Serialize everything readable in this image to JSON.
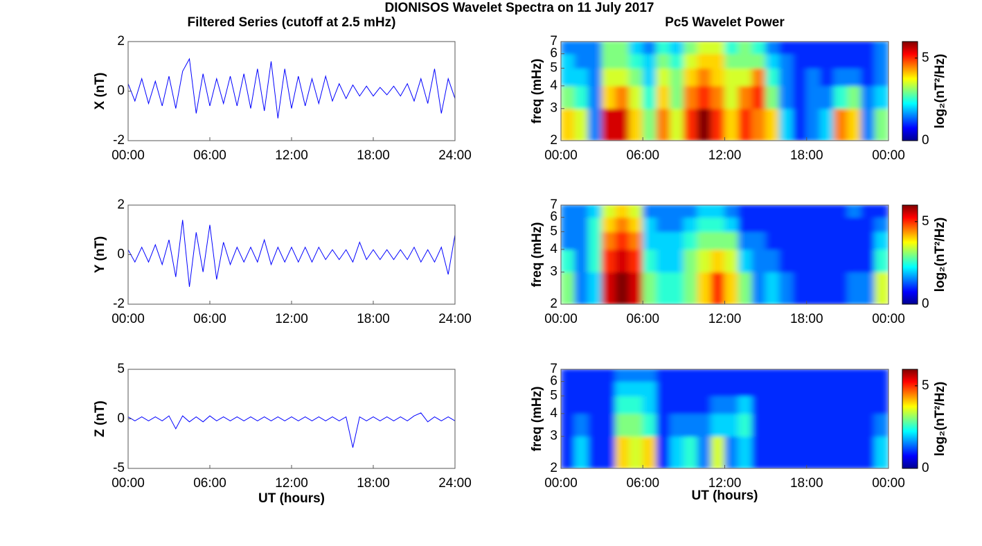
{
  "title": "DIONISOS Wavelet Spectra on 11 July 2017",
  "chart_data": [
    {
      "type": "line",
      "title": "Filtered Series (cutoff at 2.5 mHz)",
      "ylabel": "X (nT)",
      "color": "#0000ff",
      "x": [
        0,
        0.5,
        1,
        1.5,
        2,
        2.5,
        3,
        3.5,
        4,
        4.5,
        5,
        5.5,
        6,
        6.5,
        7,
        7.5,
        8,
        8.5,
        9,
        9.5,
        10,
        10.5,
        11,
        11.5,
        12,
        12.5,
        13,
        13.5,
        14,
        14.5,
        15,
        15.5,
        16,
        16.5,
        17,
        17.5,
        18,
        18.5,
        19,
        19.5,
        20,
        20.5,
        21,
        21.5,
        22,
        22.5,
        23,
        23.5,
        24
      ],
      "values": [
        0.3,
        -0.4,
        0.5,
        -0.5,
        0.4,
        -0.6,
        0.6,
        -0.7,
        0.8,
        1.3,
        -0.9,
        0.7,
        -0.6,
        0.5,
        -0.5,
        0.6,
        -0.6,
        0.7,
        -0.7,
        0.9,
        -0.8,
        1.2,
        -1.1,
        0.9,
        -0.7,
        0.6,
        -0.6,
        0.5,
        -0.5,
        0.6,
        -0.4,
        0.3,
        -0.3,
        0.25,
        -0.2,
        0.2,
        -0.2,
        0.15,
        -0.15,
        0.2,
        -0.2,
        0.3,
        -0.4,
        0.5,
        -0.5,
        0.9,
        -0.9,
        0.5,
        -0.3
      ],
      "xlim": [
        0,
        24
      ],
      "xticks": [
        {
          "value": 0,
          "label": "00:00"
        },
        {
          "value": 6,
          "label": "06:00"
        },
        {
          "value": 12,
          "label": "12:00"
        },
        {
          "value": 18,
          "label": "18:00"
        },
        {
          "value": 24,
          "label": "24:00"
        }
      ],
      "ylim": [
        -2,
        2
      ],
      "yticks": [
        -2,
        0,
        2
      ]
    },
    {
      "type": "heatmap",
      "title": "Pc5 Wavelet Power",
      "ylabel": "freq (mHz)",
      "log_scale": true,
      "xlim": [
        0,
        24
      ],
      "xticks": [
        {
          "value": 0,
          "label": "00:00"
        },
        {
          "value": 6,
          "label": "06:00"
        },
        {
          "value": 12,
          "label": "12:00"
        },
        {
          "value": 18,
          "label": "18:00"
        },
        {
          "value": 24,
          "label": "00:00"
        }
      ],
      "ylim": [
        2,
        7
      ],
      "yticks": [
        2,
        3,
        4,
        5,
        6,
        7
      ],
      "freq_bins": [
        2,
        3,
        4,
        5,
        6,
        7
      ],
      "z": [
        [
          4,
          3.5,
          1.5,
          5.5,
          5.5,
          4,
          3,
          4.5,
          3.5,
          5,
          6,
          5,
          4,
          5,
          4.5,
          4,
          2,
          1,
          1.5,
          2,
          4.5,
          4,
          1.5,
          3
        ],
        [
          3,
          2.5,
          1.5,
          4,
          4.5,
          3.5,
          2.5,
          4,
          3,
          4.5,
          5,
          4.5,
          3.5,
          4.5,
          5,
          3,
          1.5,
          1,
          1.5,
          1.5,
          2.5,
          3,
          1.5,
          2
        ],
        [
          2,
          2,
          1.5,
          3.5,
          3.5,
          3,
          2,
          3.5,
          3,
          4,
          4.5,
          4,
          3.5,
          3.5,
          4.5,
          2.5,
          1.5,
          1,
          1.5,
          1,
          1.5,
          1.5,
          1,
          1.5
        ],
        [
          2,
          1.5,
          1.5,
          3,
          3,
          2.5,
          2,
          3,
          2.5,
          3.5,
          4,
          4,
          3,
          3,
          3,
          2,
          1.5,
          1,
          1,
          1,
          1,
          1,
          1,
          1.5
        ],
        [
          1.5,
          1.5,
          1.5,
          3,
          3,
          2,
          1.5,
          2.5,
          2,
          3,
          3.5,
          3.5,
          2.5,
          3,
          2.5,
          1.5,
          1,
          1,
          1,
          1,
          1,
          1,
          1,
          1.5
        ]
      ],
      "clim": [
        0,
        6
      ],
      "cticks": [
        0,
        5
      ],
      "clabel": "log₂(nT²/Hz)"
    },
    {
      "type": "line",
      "ylabel": "Y (nT)",
      "color": "#0000ff",
      "x": [
        0,
        0.5,
        1,
        1.5,
        2,
        2.5,
        3,
        3.5,
        4,
        4.5,
        5,
        5.5,
        6,
        6.5,
        7,
        7.5,
        8,
        8.5,
        9,
        9.5,
        10,
        10.5,
        11,
        11.5,
        12,
        12.5,
        13,
        13.5,
        14,
        14.5,
        15,
        15.5,
        16,
        16.5,
        17,
        17.5,
        18,
        18.5,
        19,
        19.5,
        20,
        20.5,
        21,
        21.5,
        22,
        22.5,
        23,
        23.5,
        24
      ],
      "values": [
        0.2,
        -0.3,
        0.3,
        -0.3,
        0.4,
        -0.4,
        0.6,
        -0.9,
        1.4,
        -1.3,
        0.9,
        -0.7,
        1.2,
        -1.0,
        0.5,
        -0.4,
        0.3,
        -0.3,
        0.3,
        -0.3,
        0.6,
        -0.4,
        0.3,
        -0.3,
        0.3,
        -0.3,
        0.3,
        -0.3,
        0.3,
        -0.2,
        0.2,
        -0.2,
        0.2,
        -0.3,
        0.5,
        -0.2,
        0.2,
        -0.2,
        0.2,
        -0.2,
        0.2,
        -0.2,
        0.3,
        -0.3,
        0.2,
        -0.3,
        0.3,
        -0.8,
        0.8
      ],
      "xlim": [
        0,
        24
      ],
      "xticks": [
        {
          "value": 0,
          "label": "00:00"
        },
        {
          "value": 6,
          "label": "06:00"
        },
        {
          "value": 12,
          "label": "12:00"
        },
        {
          "value": 18,
          "label": "18:00"
        },
        {
          "value": 24,
          "label": "24:00"
        }
      ],
      "ylim": [
        -2,
        2
      ],
      "yticks": [
        -2,
        0,
        2
      ]
    },
    {
      "type": "heatmap",
      "ylabel": "freq (mHz)",
      "log_scale": true,
      "xlim": [
        0,
        24
      ],
      "xticks": [
        {
          "value": 0,
          "label": "00:00"
        },
        {
          "value": 6,
          "label": "06:00"
        },
        {
          "value": 12,
          "label": "12:00"
        },
        {
          "value": 18,
          "label": "18:00"
        },
        {
          "value": 24,
          "label": "00:00"
        }
      ],
      "ylim": [
        2,
        7
      ],
      "yticks": [
        2,
        3,
        4,
        5,
        6,
        7
      ],
      "freq_bins": [
        2,
        3,
        4,
        5,
        6,
        7
      ],
      "z": [
        [
          3,
          1.5,
          2,
          5.5,
          6,
          5.5,
          3,
          2.5,
          2.5,
          3,
          4,
          5,
          4,
          3,
          1.5,
          2,
          1.5,
          1,
          1,
          1,
          1,
          1.5,
          1.5,
          3.5
        ],
        [
          2.5,
          1.5,
          2.5,
          5,
          5.5,
          5,
          2.5,
          2,
          2,
          3,
          3.5,
          4,
          3.5,
          2,
          1.5,
          1.5,
          1,
          1,
          1,
          1,
          1,
          1,
          1,
          2.5
        ],
        [
          1.5,
          1.5,
          2.5,
          4.5,
          5,
          4.5,
          2,
          2,
          2,
          2.5,
          3,
          3,
          3,
          1.5,
          1.5,
          1,
          1,
          1,
          1,
          1,
          1,
          1,
          1,
          2
        ],
        [
          1.5,
          1.5,
          2.5,
          4,
          4.5,
          4,
          2,
          1.5,
          1.5,
          2,
          2.5,
          2.5,
          2,
          1,
          1,
          1,
          1,
          1,
          1,
          1,
          1,
          1,
          1,
          1.5
        ],
        [
          1.5,
          1.5,
          2,
          3.5,
          4,
          3.5,
          1.5,
          1.5,
          1.5,
          1.5,
          2,
          2,
          1.5,
          1,
          1,
          1,
          1,
          1,
          1,
          1,
          1,
          1.5,
          1,
          1
        ]
      ],
      "clim": [
        0,
        6
      ],
      "cticks": [
        0,
        5
      ],
      "clabel": "log₂(nT²/Hz)"
    },
    {
      "type": "line",
      "ylabel": "Z (nT)",
      "xlabel": "UT (hours)",
      "color": "#0000ff",
      "x": [
        0,
        0.5,
        1,
        1.5,
        2,
        2.5,
        3,
        3.5,
        4,
        4.5,
        5,
        5.5,
        6,
        6.5,
        7,
        7.5,
        8,
        8.5,
        9,
        9.5,
        10,
        10.5,
        11,
        11.5,
        12,
        12.5,
        13,
        13.5,
        14,
        14.5,
        15,
        15.5,
        16,
        16.5,
        17,
        17.5,
        18,
        18.5,
        19,
        19.5,
        20,
        20.5,
        21,
        21.5,
        22,
        22.5,
        23,
        23.5,
        24
      ],
      "values": [
        0.2,
        -0.2,
        0.2,
        -0.2,
        0.2,
        -0.2,
        0.3,
        -1.0,
        0.3,
        -0.3,
        0.2,
        -0.3,
        0.3,
        -0.2,
        0.2,
        -0.2,
        0.2,
        -0.2,
        0.2,
        -0.2,
        0.2,
        -0.2,
        0.2,
        -0.2,
        0.2,
        -0.2,
        0.2,
        -0.2,
        0.2,
        -0.2,
        0.2,
        -0.2,
        0.2,
        -2.9,
        0.2,
        -0.2,
        0.2,
        -0.2,
        0.2,
        -0.2,
        0.2,
        -0.2,
        0.3,
        0.6,
        -0.3,
        0.2,
        -0.2,
        0.2,
        -0.2
      ],
      "xlim": [
        0,
        24
      ],
      "xticks": [
        {
          "value": 0,
          "label": "00:00"
        },
        {
          "value": 6,
          "label": "06:00"
        },
        {
          "value": 12,
          "label": "12:00"
        },
        {
          "value": 18,
          "label": "18:00"
        },
        {
          "value": 24,
          "label": "24:00"
        }
      ],
      "ylim": [
        -5,
        5
      ],
      "yticks": [
        -5,
        0,
        5
      ]
    },
    {
      "type": "heatmap",
      "ylabel": "freq (mHz)",
      "xlabel": "UT (hours)",
      "log_scale": true,
      "xlim": [
        0,
        24
      ],
      "xticks": [
        {
          "value": 0,
          "label": "00:00"
        },
        {
          "value": 6,
          "label": "06:00"
        },
        {
          "value": 12,
          "label": "12:00"
        },
        {
          "value": 18,
          "label": "18:00"
        },
        {
          "value": 24,
          "label": "00:00"
        }
      ],
      "ylim": [
        2,
        7
      ],
      "yticks": [
        2,
        3,
        4,
        5,
        6,
        7
      ],
      "freq_bins": [
        2,
        3,
        4,
        5,
        6,
        7
      ],
      "z": [
        [
          1,
          2,
          1,
          1,
          4,
          3.5,
          4,
          1,
          2,
          2.5,
          1.5,
          3.5,
          1.5,
          2,
          1,
          1,
          1,
          1,
          1,
          1,
          1,
          1,
          1,
          2
        ],
        [
          1,
          1.5,
          1,
          1,
          3,
          3,
          2.5,
          1,
          1.5,
          1.5,
          1.5,
          2,
          2,
          2.5,
          1,
          1,
          1,
          1,
          1,
          1,
          1,
          1,
          1,
          1.5
        ],
        [
          1,
          1,
          1,
          1,
          2.5,
          2.5,
          2,
          1,
          1,
          1,
          1,
          1.5,
          1.5,
          2,
          1,
          1,
          1,
          1,
          1,
          1,
          1,
          1,
          1,
          1
        ],
        [
          1,
          1,
          1,
          1,
          2,
          2,
          2,
          1,
          1,
          1,
          1,
          1,
          1,
          1,
          1,
          1,
          1,
          1,
          1,
          1,
          1,
          1,
          1,
          1
        ],
        [
          1,
          1,
          1,
          1,
          1.5,
          1.5,
          1.5,
          1,
          1,
          1,
          1,
          1,
          1,
          1,
          1,
          1,
          1,
          1,
          1,
          1,
          1,
          1,
          1,
          1
        ]
      ],
      "clim": [
        0,
        6
      ],
      "cticks": [
        0,
        5
      ],
      "clabel": "log₂(nT²/Hz)"
    }
  ]
}
